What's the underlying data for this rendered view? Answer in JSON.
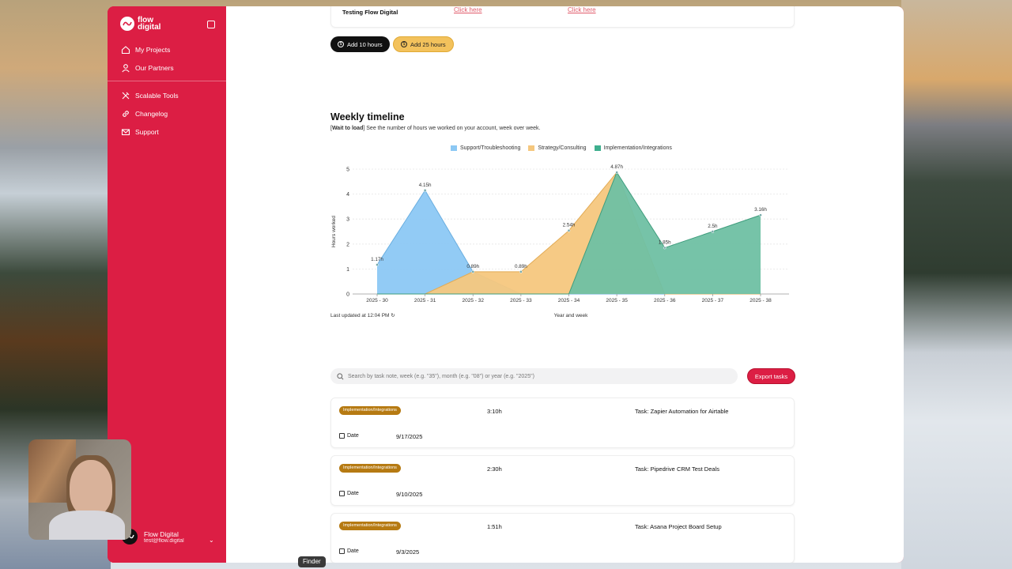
{
  "sidebar": {
    "logo": "flow digital",
    "items": [
      {
        "label": "My Projects",
        "icon": "home-icon"
      },
      {
        "label": "Our Partners",
        "icon": "user-icon"
      },
      {
        "label": "Scalable Tools",
        "icon": "tools-icon"
      },
      {
        "label": "Changelog",
        "icon": "link-icon"
      },
      {
        "label": "Support",
        "icon": "mail-icon"
      }
    ],
    "account": {
      "name": "Flow Digital",
      "email": "test@flow.digital"
    }
  },
  "top_card": {
    "title": "Testing Flow Digital",
    "link1": "Click here",
    "link2": "Click here"
  },
  "buttons": {
    "add10": "Add 10 hours",
    "add25": "Add 25 hours"
  },
  "timeline": {
    "title": "Weekly timeline",
    "subtitle_bold": "Wait to load",
    "subtitle_rest": " See the number of hours we worked on your account, week over week.",
    "updated": "Last updated at 12:04 PM"
  },
  "chart_data": {
    "type": "area",
    "categories": [
      "2025 - 30",
      "2025 - 31",
      "2025 - 32",
      "2025 - 33",
      "2025 - 34",
      "2025 - 35",
      "2025 - 36",
      "2025 - 37",
      "2025 - 38"
    ],
    "series": [
      {
        "name": "Support/Troubleshooting",
        "color": "#8cc8f4",
        "values": [
          1.17,
          4.15,
          0.89,
          0,
          0,
          0,
          0,
          0,
          0
        ]
      },
      {
        "name": "Strategy/Consulting",
        "color": "#f5c77e",
        "values": [
          0,
          0,
          0.89,
          0.89,
          2.54,
          4.87,
          0,
          0,
          0
        ]
      },
      {
        "name": "Implementation/Integrations",
        "color": "#6fc0a3",
        "values": [
          0,
          0,
          0,
          0,
          0,
          4.87,
          1.85,
          2.5,
          3.16
        ]
      }
    ],
    "point_labels": [
      "1.17h",
      "4.15h",
      "0.89h",
      "0.89h",
      "2.54h",
      "4.87h",
      "1.85h",
      "2.5h",
      "3.16h"
    ],
    "label_values": [
      1.17,
      4.15,
      0.89,
      0.89,
      2.54,
      4.87,
      1.85,
      2.5,
      3.16
    ],
    "xlabel": "Year and week",
    "ylabel": "Hours worked",
    "ylim": [
      0,
      5
    ],
    "yticks": [
      0,
      1,
      2,
      3,
      4,
      5
    ],
    "grid": true,
    "legend": "top-center"
  },
  "search": {
    "placeholder": "Search by task note, week (e.g. \"35\"), month (e.g. \"08\") or year (e.g. \"2025\")"
  },
  "export_label": "Export tasks",
  "date_label": "Date",
  "tasks": [
    {
      "category": "Implementation/Integrations",
      "hours": "3:10h",
      "name": "Task: Zapier Automation for Airtable",
      "date": "9/17/2025"
    },
    {
      "category": "Implementation/Integrations",
      "hours": "2:30h",
      "name": "Task: Pipedrive CRM Test Deals",
      "date": "9/10/2025"
    },
    {
      "category": "Implementation/Integrations",
      "hours": "1:51h",
      "name": "Task: Asana Project Board Setup",
      "date": "9/3/2025"
    }
  ],
  "dock": {
    "finder": "Finder"
  }
}
